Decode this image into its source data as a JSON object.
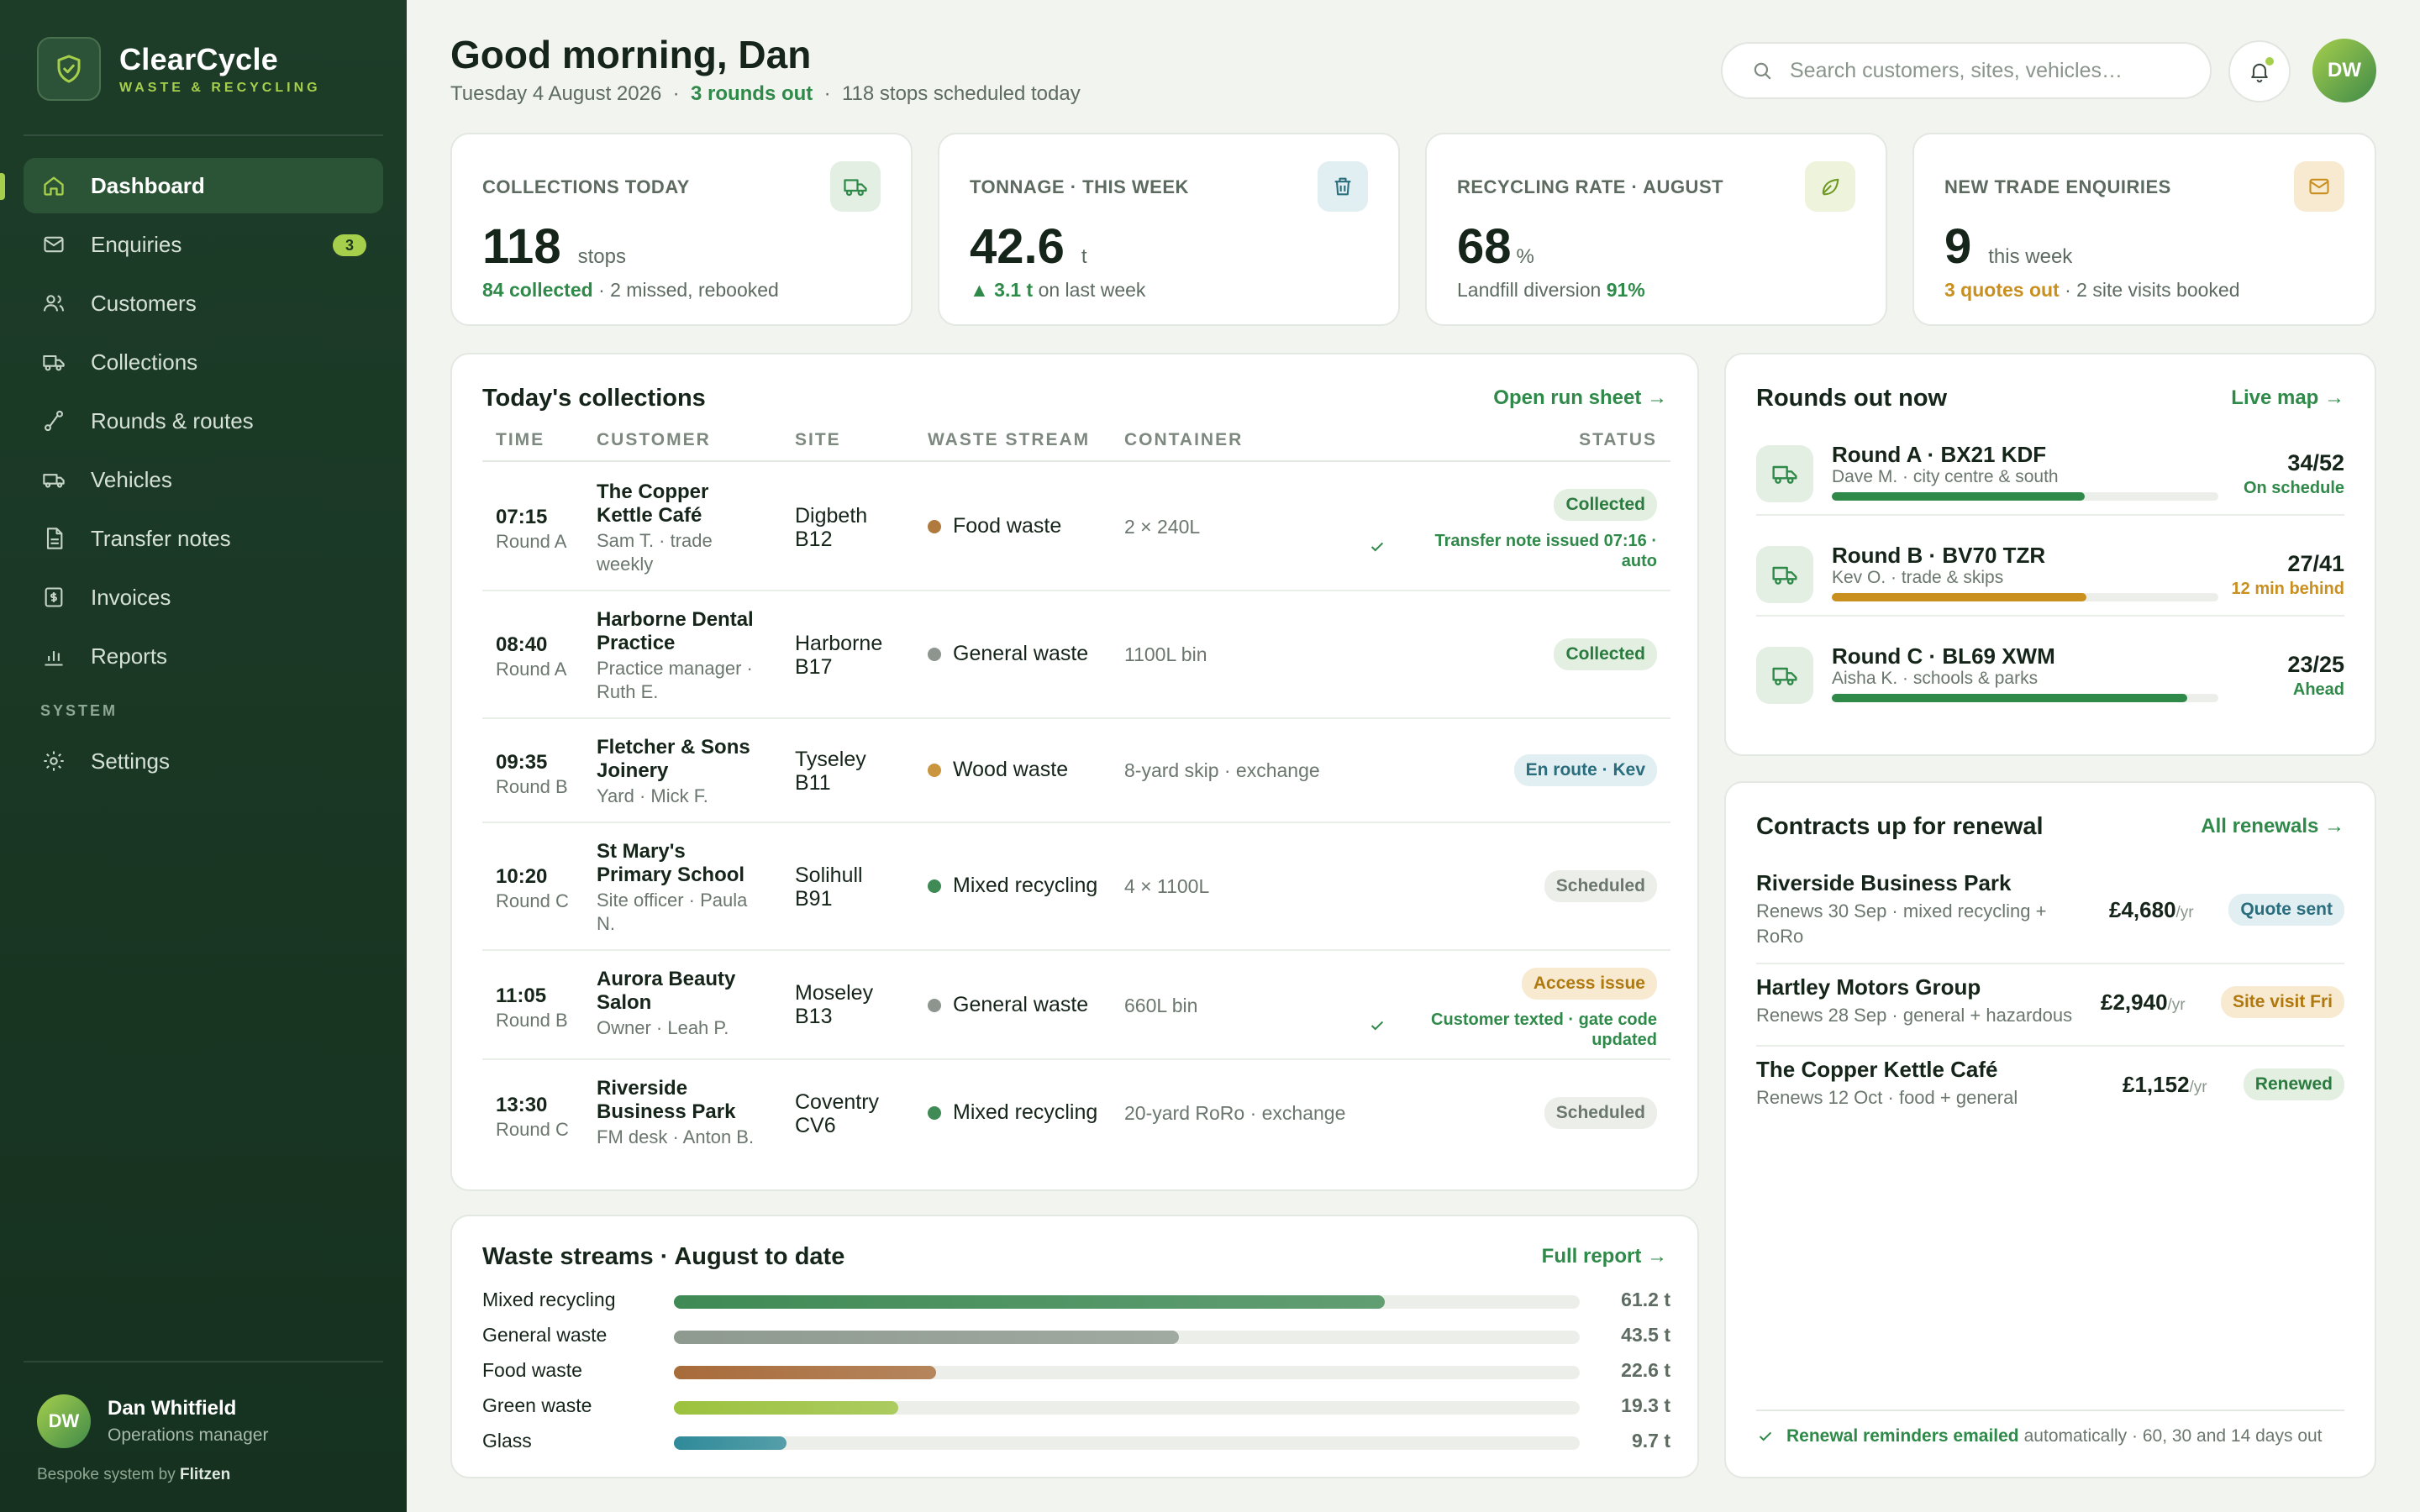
{
  "brand": {
    "name": "ClearCycle",
    "tagline": "WASTE & RECYCLING"
  },
  "nav": {
    "items": [
      {
        "label": "Dashboard",
        "icon": "home-icon",
        "active": true
      },
      {
        "label": "Enquiries",
        "icon": "mail-icon",
        "badge": "3"
      },
      {
        "label": "Customers",
        "icon": "users-icon"
      },
      {
        "label": "Collections",
        "icon": "truck-icon"
      },
      {
        "label": "Rounds & routes",
        "icon": "route-icon"
      },
      {
        "label": "Vehicles",
        "icon": "van-icon"
      },
      {
        "label": "Transfer notes",
        "icon": "document-icon"
      },
      {
        "label": "Invoices",
        "icon": "invoice-icon"
      },
      {
        "label": "Reports",
        "icon": "bar-chart-icon"
      }
    ],
    "section_label": "SYSTEM",
    "settings_label": "Settings"
  },
  "user": {
    "initials": "DW",
    "name": "Dan Whitfield",
    "role": "Operations manager"
  },
  "footer": {
    "prefix": "Bespoke system by",
    "vendor": "Flitzen"
  },
  "header": {
    "greeting": "Good morning, Dan",
    "date": "Tuesday 4 August 2026",
    "rounds": "3 rounds out",
    "stops": "118 stops scheduled today",
    "search_placeholder": "Search customers, sites, vehicles…"
  },
  "kpis": [
    {
      "label": "COLLECTIONS TODAY",
      "value": "118",
      "unit": "stops",
      "foot_hl": "84 collected",
      "foot_rest": " · 2 missed, rebooked",
      "icon": "truck-icon",
      "icon_bg": "#e3efe3"
    },
    {
      "label": "TONNAGE · THIS WEEK",
      "value": "42.6",
      "unit": "t",
      "foot_hl": "▲ 3.1 t",
      "foot_rest": " on last week",
      "icon": "bin-icon",
      "icon_bg": "#e1eef2"
    },
    {
      "label": "RECYCLING RATE · AUGUST",
      "value": "68",
      "unit": "%",
      "foot_pre": "Landfill diversion ",
      "foot_hl": "91%",
      "icon": "leaf-icon",
      "icon_bg": "#eef3dc"
    },
    {
      "label": "NEW TRADE ENQUIRIES",
      "value": "9",
      "unit": "this week",
      "foot_hl": "3 quotes out",
      "foot_rest": " · 2 site visits booked",
      "icon": "mail-icon",
      "icon_bg": "#f7ead0"
    }
  ],
  "collections": {
    "title": "Today's collections",
    "link": "Open run sheet →",
    "columns": [
      "TIME",
      "CUSTOMER",
      "SITE",
      "WASTE STREAM",
      "CONTAINER",
      "STATUS"
    ],
    "rows": [
      {
        "time": "07:15",
        "round": "Round A",
        "customer": "The Copper Kettle Café",
        "contact": "Sam T. · trade weekly",
        "site": "Digbeth B12",
        "stream": "Food waste",
        "stream_color": "#b07a3f",
        "container": "2 × 240L",
        "status": "Collected",
        "status_style": "green",
        "note": "Transfer note issued 07:16 · auto"
      },
      {
        "time": "08:40",
        "round": "Round A",
        "customer": "Harborne Dental Practice",
        "contact": "Practice manager · Ruth E.",
        "site": "Harborne B17",
        "stream": "General waste",
        "stream_color": "#8e958f",
        "container": "1100L bin",
        "status": "Collected",
        "status_style": "green"
      },
      {
        "time": "09:35",
        "round": "Round B",
        "customer": "Fletcher & Sons Joinery",
        "contact": "Yard · Mick F.",
        "site": "Tyseley B11",
        "stream": "Wood waste",
        "stream_color": "#c9953f",
        "container": "8-yard skip · exchange",
        "status": "En route · Kev",
        "status_style": "blue"
      },
      {
        "time": "10:20",
        "round": "Round C",
        "customer": "St Mary's Primary School",
        "contact": "Site officer · Paula N.",
        "site": "Solihull B91",
        "stream": "Mixed recycling",
        "stream_color": "#3f8a55",
        "container": "4 × 1100L",
        "status": "Scheduled",
        "status_style": "grey"
      },
      {
        "time": "11:05",
        "round": "Round B",
        "customer": "Aurora Beauty Salon",
        "contact": "Owner · Leah P.",
        "site": "Moseley B13",
        "stream": "General waste",
        "stream_color": "#8e958f",
        "container": "660L bin",
        "status": "Access issue",
        "status_style": "amber",
        "note": "Customer texted · gate code updated"
      },
      {
        "time": "13:30",
        "round": "Round C",
        "customer": "Riverside Business Park",
        "contact": "FM desk · Anton B.",
        "site": "Coventry CV6",
        "stream": "Mixed recycling",
        "stream_color": "#3f8a55",
        "container": "20-yard RoRo · exchange",
        "status": "Scheduled",
        "status_style": "grey"
      }
    ]
  },
  "rounds": {
    "title": "Rounds out now",
    "link": "Live map →",
    "items": [
      {
        "name": "Round A · BX21 KDF",
        "sub": "Dave M. · city centre & south",
        "count": "34/52",
        "progress": 0.654,
        "state": "On schedule",
        "color": "#2f8a4a"
      },
      {
        "name": "Round B · BV70 TZR",
        "sub": "Kev O. · trade & skips",
        "count": "27/41",
        "progress": 0.659,
        "state": "12 min behind",
        "color": "#c98f1f"
      },
      {
        "name": "Round C · BL69 XWM",
        "sub": "Aisha K. · schools & parks",
        "count": "23/25",
        "progress": 0.92,
        "state": "Ahead",
        "color": "#2f8a4a"
      }
    ]
  },
  "renewals": {
    "title": "Contracts up for renewal",
    "link": "All renewals →",
    "items": [
      {
        "name": "Riverside Business Park",
        "sub": "Renews 30 Sep · mixed recycling + RoRo",
        "price": "£4,680",
        "per": "/yr",
        "status": "Quote sent",
        "status_style": "blue"
      },
      {
        "name": "Hartley Motors Group",
        "sub": "Renews 28 Sep · general + hazardous",
        "price": "£2,940",
        "per": "/yr",
        "status": "Site visit Fri",
        "status_style": "amber"
      },
      {
        "name": "The Copper Kettle Café",
        "sub": "Renews 12 Oct · food + general",
        "price": "£1,152",
        "per": "/yr",
        "status": "Renewed",
        "status_style": "green"
      }
    ],
    "foot_hl": "Renewal reminders emailed",
    "foot_rest": "automatically · 60, 30 and 14 days out"
  },
  "waste_streams": {
    "title": "Waste streams · August to date",
    "link": "Full report →",
    "chart_data": {
      "type": "bar",
      "categories": [
        "Mixed recycling",
        "General waste",
        "Food waste",
        "Green waste",
        "Glass"
      ],
      "values": [
        61.2,
        43.5,
        22.6,
        19.3,
        9.7
      ],
      "labels": [
        "61.2 t",
        "43.5 t",
        "22.6 t",
        "19.3 t",
        "9.7 t"
      ],
      "colors": [
        "#3f8a55",
        "#8e998f",
        "#a86b3a",
        "#9cc23e",
        "#2f8a99"
      ],
      "xlim": [
        0,
        78
      ]
    }
  }
}
